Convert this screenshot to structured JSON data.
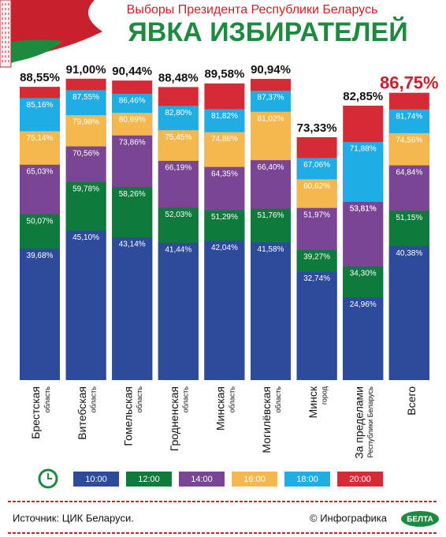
{
  "chart_data": {
    "type": "bar",
    "supertitle": "Выборы Президента Республики Беларусь",
    "title": "ЯВКА ИЗБИРАТЕЛЕЙ",
    "categories": [
      "Брестская",
      "Витебская",
      "Гомельская",
      "Гродненская",
      "Минская",
      "Могилёвская",
      "Минск",
      "За пределами",
      "Всего"
    ],
    "category_notes": [
      "область",
      "область",
      "область",
      "область",
      "область",
      "область",
      "город",
      "Республики Беларусь",
      null
    ],
    "ylim": [
      0,
      100
    ],
    "series": [
      {
        "name": "10:00",
        "color": "#2d4a9b",
        "values": [
          39.68,
          45.1,
          43.14,
          41.44,
          42.04,
          41.58,
          32.74,
          24.96,
          40.38
        ],
        "value_labels": [
          "39,68%",
          "45,10%",
          "43,14%",
          "41,44%",
          "42,04%",
          "41,58%",
          "32,74%",
          "24,96%",
          "40,38%"
        ]
      },
      {
        "name": "12:00",
        "color": "#0e7a3b",
        "values": [
          50.07,
          59.78,
          58.26,
          52.03,
          51.29,
          51.76,
          39.27,
          34.3,
          51.15
        ],
        "value_labels": [
          "50,07%",
          "59,78%",
          "58,26%",
          "52,03%",
          "51,29%",
          "51,76%",
          "39,27%",
          "34,30%",
          "51,15%"
        ]
      },
      {
        "name": "14:00",
        "color": "#7b4596",
        "values": [
          65.03,
          70.56,
          73.86,
          66.19,
          64.35,
          66.4,
          51.97,
          53.81,
          64.84
        ],
        "value_labels": [
          "65,03%",
          "70,56%",
          "73,86%",
          "66,19%",
          "64,35%",
          "66,40%",
          "51,97%",
          "53,81%",
          "64,84%"
        ]
      },
      {
        "name": "16:00",
        "color": "#f5b84f",
        "values": [
          75.14,
          79.98,
          80.69,
          75.45,
          74.86,
          81.02,
          60.62,
          53.81,
          74.56
        ],
        "value_labels": [
          "75,14%",
          "79,98%",
          "80,69%",
          "75,45%",
          "74,86%",
          "81,02%",
          "60,62%",
          "53,81%",
          "74,56%"
        ]
      },
      {
        "name": "18:00",
        "color": "#1fade5",
        "values": [
          85.16,
          87.55,
          86.46,
          82.8,
          81.82,
          87.37,
          67.06,
          71.88,
          81.74
        ],
        "value_labels": [
          "85,16%",
          "87,55%",
          "86,46%",
          "82,80%",
          "81,82%",
          "87,37%",
          "67,06%",
          "71,88%",
          "81,74%"
        ]
      },
      {
        "name": "20:00",
        "color": "#d62a36",
        "values": [
          88.55,
          91.0,
          90.44,
          88.48,
          89.58,
          90.94,
          73.33,
          82.85,
          86.75
        ],
        "value_labels": [
          "88,55%",
          "91,00%",
          "90,44%",
          "88,48%",
          "89,58%",
          "90,94%",
          "73,33%",
          "82,85%",
          "86,75%"
        ]
      }
    ]
  },
  "footer": {
    "source": "Источник: ЦИК Беларуси.",
    "credit": "© Инфографика",
    "logo": "БЕЛТА"
  }
}
